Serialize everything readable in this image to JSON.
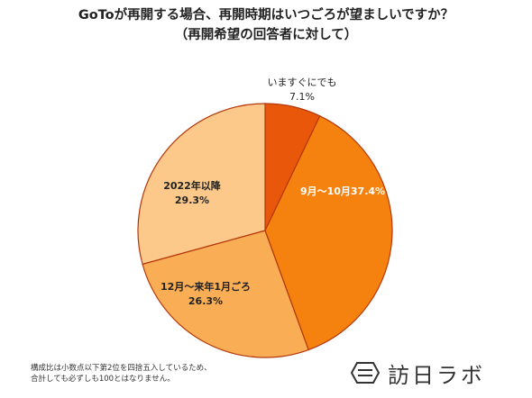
{
  "title": {
    "line1": "GoToが再開する場合、再開時期はいつごろが望ましいですか？",
    "line2": "（再開希望の回答者に対して）"
  },
  "chart_data": {
    "type": "pie",
    "title": "GoToが再開する場合、再開時期はいつごろが望ましいですか？（再開希望の回答者に対して）",
    "slices": [
      {
        "label": "いますぐにでも",
        "value": 7.1,
        "value_label": "7.1%",
        "color": "#e8570a"
      },
      {
        "label": "9月～10月",
        "value": 37.4,
        "value_label": "37.4%",
        "color": "#f5820e"
      },
      {
        "label": "12月～来年1月ごろ",
        "value": 26.3,
        "value_label": "26.3%",
        "color": "#f9ae55"
      },
      {
        "label": "2022年以降",
        "value": 29.3,
        "value_label": "29.3%",
        "color": "#fcc98b"
      }
    ],
    "start": "12 o'clock",
    "direction": "clockwise"
  },
  "footnote": {
    "line1": "構成比は小数点以下第2位を四捨五入しているため、",
    "line2": "合計しても必ずしも100とはなりません。"
  },
  "logo": {
    "text": "訪日ラボ",
    "icon": "logo-mark-icon"
  }
}
